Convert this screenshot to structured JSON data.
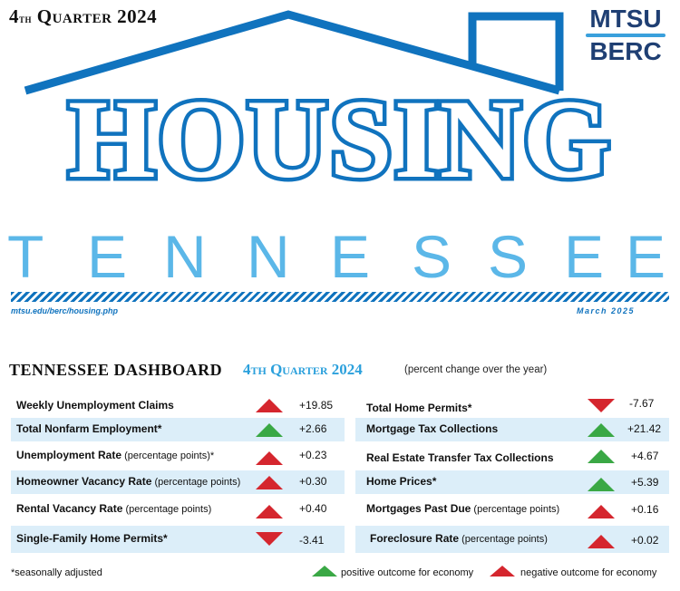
{
  "header": {
    "quarter_num": "4",
    "quarter_suffix": "th",
    "quarter_rest": " Quarter 2024",
    "logo_line1": "MTSU",
    "logo_line2": "BERC",
    "title": "HOUSING",
    "subtitle_letters": [
      "T",
      "E",
      "N",
      "N",
      "E",
      "S",
      "S",
      "E",
      "E"
    ],
    "url": "mtsu.edu/berc/housing.php",
    "date": "March 2025"
  },
  "colors": {
    "brand_blue": "#1073be",
    "light_blue": "#5bb7e8",
    "row_shade": "#dceef9",
    "positive": "#3aa845",
    "negative": "#d5262e"
  },
  "dashboard": {
    "title": "TENNESSEE DASHBOARD",
    "quarter": "4th Quarter 2024",
    "note": "(percent change over the year)",
    "left": [
      {
        "label": "Weekly Unemployment Claims",
        "sub": "",
        "value": "+19.85",
        "arrow": "up",
        "outcome": "negative"
      },
      {
        "label": "Total Nonfarm Employment*",
        "sub": "",
        "value": "+2.66",
        "arrow": "up",
        "outcome": "positive"
      },
      {
        "label": "Unemployment Rate",
        "sub": " (percentage points)*",
        "value": "+0.23",
        "arrow": "up",
        "outcome": "negative"
      },
      {
        "label": "Homeowner Vacancy Rate",
        "sub": " (percentage points)",
        "value": "+0.30",
        "arrow": "up",
        "outcome": "negative"
      },
      {
        "label": "Rental Vacancy Rate",
        "sub": " (percentage points)",
        "value": "+0.40",
        "arrow": "up",
        "outcome": "negative"
      },
      {
        "label": "Single-Family Home Permits*",
        "sub": "",
        "value": "-3.41",
        "arrow": "down",
        "outcome": "negative"
      }
    ],
    "right": [
      {
        "label": "Total Home Permits*",
        "sub": "",
        "value": "-7.67",
        "arrow": "down",
        "outcome": "negative"
      },
      {
        "label": "Mortgage Tax Collections",
        "sub": "",
        "value": "+21.42",
        "arrow": "up",
        "outcome": "positive"
      },
      {
        "label": "Real Estate Transfer Tax Collections",
        "sub": "",
        "value": "+4.67",
        "arrow": "up",
        "outcome": "positive"
      },
      {
        "label": "Home Prices*",
        "sub": "",
        "value": "+5.39",
        "arrow": "up",
        "outcome": "positive"
      },
      {
        "label": "Mortgages Past Due",
        "sub": " (percentage points)",
        "value": "+0.16",
        "arrow": "up",
        "outcome": "negative"
      },
      {
        "label": "Foreclosure Rate",
        "sub": " (percentage points)",
        "value": "+0.02",
        "arrow": "up",
        "outcome": "negative"
      }
    ]
  },
  "footer": {
    "note": "*seasonally adjusted",
    "legend_positive": "positive outcome for economy",
    "legend_negative": "negative outcome for economy"
  }
}
